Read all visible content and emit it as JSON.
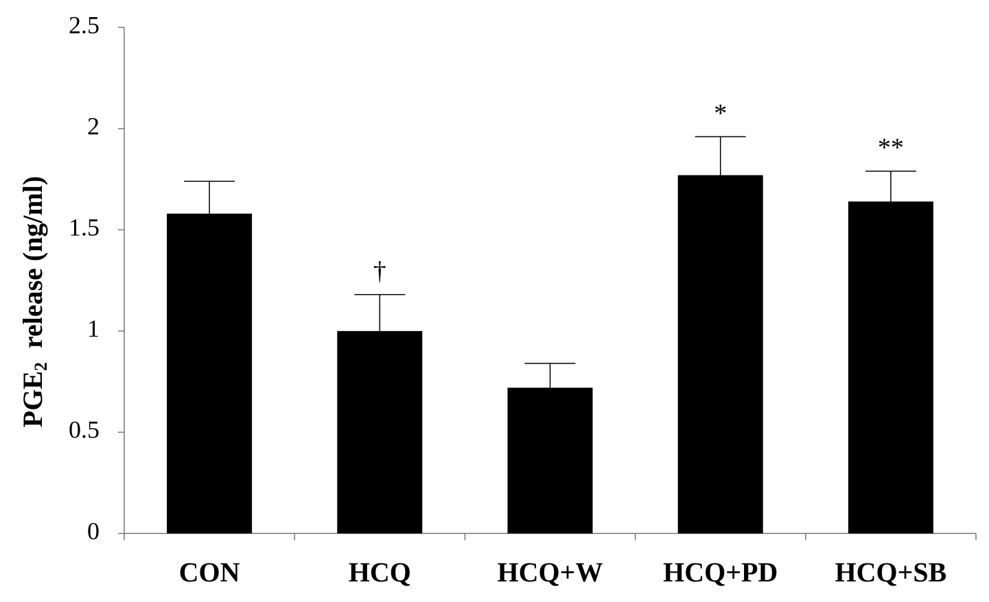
{
  "chart_data": {
    "type": "bar",
    "title": "",
    "xlabel": "",
    "ylabel": {
      "prefix": "PGE",
      "subscript": "2",
      "suffix": "release (ng/ml)"
    },
    "ylim": [
      0,
      2.5
    ],
    "yticks": [
      "0",
      "0.5",
      "1",
      "1.5",
      "2",
      "2.5"
    ],
    "categories": [
      "CON",
      "HCQ",
      "HCQ+W",
      "HCQ+PD",
      "HCQ+SB"
    ],
    "values": [
      1.58,
      1.0,
      0.72,
      1.77,
      1.64
    ],
    "errors": [
      0.16,
      0.18,
      0.12,
      0.19,
      0.15
    ],
    "annotations": [
      "",
      "†",
      "",
      "*",
      "**"
    ],
    "bar_color": "#000000",
    "grid": false,
    "legend": "none"
  }
}
